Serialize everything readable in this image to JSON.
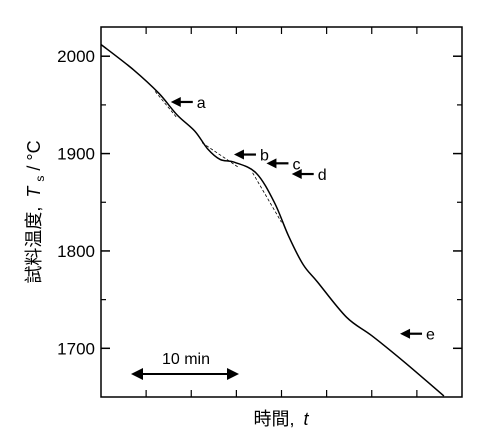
{
  "chart_data": {
    "type": "line",
    "ylabel_text": "試料温度,",
    "ylabel_var": "T",
    "ylabel_sub": "s",
    "ylabel_unit": " / °C",
    "xlabel_text": "時間,",
    "xlabel_var": "t",
    "x_ticks_count": 7,
    "ylim": [
      1650,
      2030
    ],
    "yticks": [
      1700,
      1800,
      1900,
      2000
    ],
    "ytick_labels": [
      "1700",
      "1800",
      "1900",
      "2000"
    ],
    "minor_yticks": [
      1750,
      1850,
      1950
    ],
    "grid": false,
    "scale_bar": {
      "label": "10 min"
    },
    "series": [
      {
        "values_x": [
          0,
          0.09,
          0.16,
          0.21,
          0.26,
          0.295,
          0.33,
          0.37,
          0.43,
          0.48,
          0.52,
          0.56,
          0.6,
          0.68,
          0.75,
          0.84,
          0.95
        ],
        "values_y": [
          2012,
          1986,
          1962,
          1940,
          1923,
          1905,
          1894,
          1891,
          1880,
          1850,
          1815,
          1786,
          1768,
          1732,
          1713,
          1686,
          1651
        ]
      }
    ],
    "annotations": [
      {
        "label": "a",
        "x": 0.185,
        "y": 1953
      },
      {
        "label": "b",
        "x": 0.36,
        "y": 1899
      },
      {
        "label": "c",
        "x": 0.45,
        "y": 1890
      },
      {
        "label": "d",
        "x": 0.52,
        "y": 1879
      },
      {
        "label": "e",
        "x": 0.82,
        "y": 1715
      }
    ]
  }
}
